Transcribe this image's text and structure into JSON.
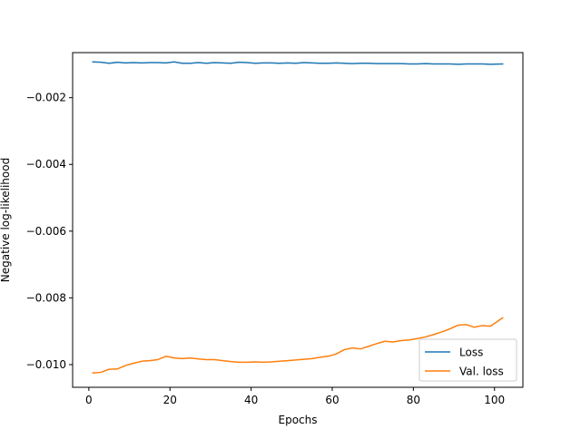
{
  "chart_data": {
    "type": "line",
    "title": "",
    "xlabel": "Epochs",
    "ylabel": "Negative log-likelihood",
    "xlim": [
      -4,
      107
    ],
    "ylim": [
      -0.01068,
      -0.00065
    ],
    "xticks": [
      0,
      20,
      40,
      60,
      80,
      100
    ],
    "xtick_labels": [
      "0",
      "20",
      "40",
      "60",
      "80",
      "100"
    ],
    "yticks": [
      -0.01,
      -0.008,
      -0.006,
      -0.004,
      -0.002
    ],
    "ytick_labels": [
      "−0.010",
      "−0.008",
      "−0.006",
      "−0.004",
      "−0.002"
    ],
    "grid": false,
    "legend_position": "lower right",
    "series": [
      {
        "name": "Loss",
        "color": "#1f77b4",
        "x": [
          1,
          3,
          5,
          7,
          9,
          11,
          13,
          15,
          17,
          19,
          21,
          23,
          25,
          27,
          29,
          31,
          33,
          35,
          37,
          39,
          41,
          43,
          45,
          47,
          49,
          51,
          53,
          55,
          57,
          59,
          61,
          63,
          65,
          67,
          69,
          71,
          73,
          75,
          77,
          79,
          81,
          83,
          85,
          87,
          89,
          91,
          93,
          95,
          97,
          99,
          102
        ],
        "y": [
          -0.00093,
          -0.00094,
          -0.00097,
          -0.00094,
          -0.00096,
          -0.00095,
          -0.00096,
          -0.00095,
          -0.00095,
          -0.00096,
          -0.00093,
          -0.00097,
          -0.00097,
          -0.00095,
          -0.00097,
          -0.00095,
          -0.00096,
          -0.00097,
          -0.00094,
          -0.00095,
          -0.00097,
          -0.00096,
          -0.00096,
          -0.00097,
          -0.00096,
          -0.00097,
          -0.00095,
          -0.00096,
          -0.00097,
          -0.00097,
          -0.00096,
          -0.00097,
          -0.00098,
          -0.00097,
          -0.00097,
          -0.00098,
          -0.00098,
          -0.00098,
          -0.00098,
          -0.00099,
          -0.00099,
          -0.00098,
          -0.00099,
          -0.00099,
          -0.00099,
          -0.001,
          -0.00099,
          -0.00099,
          -0.00099,
          -0.001,
          -0.00099
        ]
      },
      {
        "name": "Val. loss",
        "color": "#ff7f0e",
        "x": [
          1,
          3,
          5,
          7,
          9,
          11,
          13,
          15,
          17,
          19,
          21,
          23,
          25,
          27,
          29,
          31,
          33,
          35,
          37,
          39,
          41,
          43,
          45,
          47,
          49,
          51,
          53,
          55,
          57,
          59,
          61,
          63,
          65,
          67,
          69,
          71,
          73,
          75,
          77,
          79,
          81,
          83,
          85,
          87,
          89,
          91,
          93,
          95,
          97,
          99,
          102
        ],
        "y": [
          -0.01025,
          -0.01023,
          -0.01014,
          -0.01013,
          -0.01003,
          -0.00996,
          -0.0099,
          -0.00988,
          -0.00985,
          -0.00975,
          -0.0098,
          -0.00982,
          -0.0098,
          -0.00983,
          -0.00985,
          -0.00985,
          -0.00988,
          -0.00991,
          -0.00993,
          -0.00993,
          -0.00992,
          -0.00993,
          -0.00992,
          -0.0099,
          -0.00988,
          -0.00986,
          -0.00984,
          -0.00982,
          -0.00978,
          -0.00975,
          -0.00968,
          -0.00955,
          -0.0095,
          -0.00953,
          -0.00945,
          -0.00937,
          -0.0093,
          -0.00932,
          -0.00928,
          -0.00926,
          -0.00922,
          -0.00917,
          -0.0091,
          -0.00902,
          -0.00893,
          -0.00882,
          -0.0088,
          -0.00888,
          -0.00883,
          -0.00885,
          -0.0086
        ]
      }
    ]
  }
}
